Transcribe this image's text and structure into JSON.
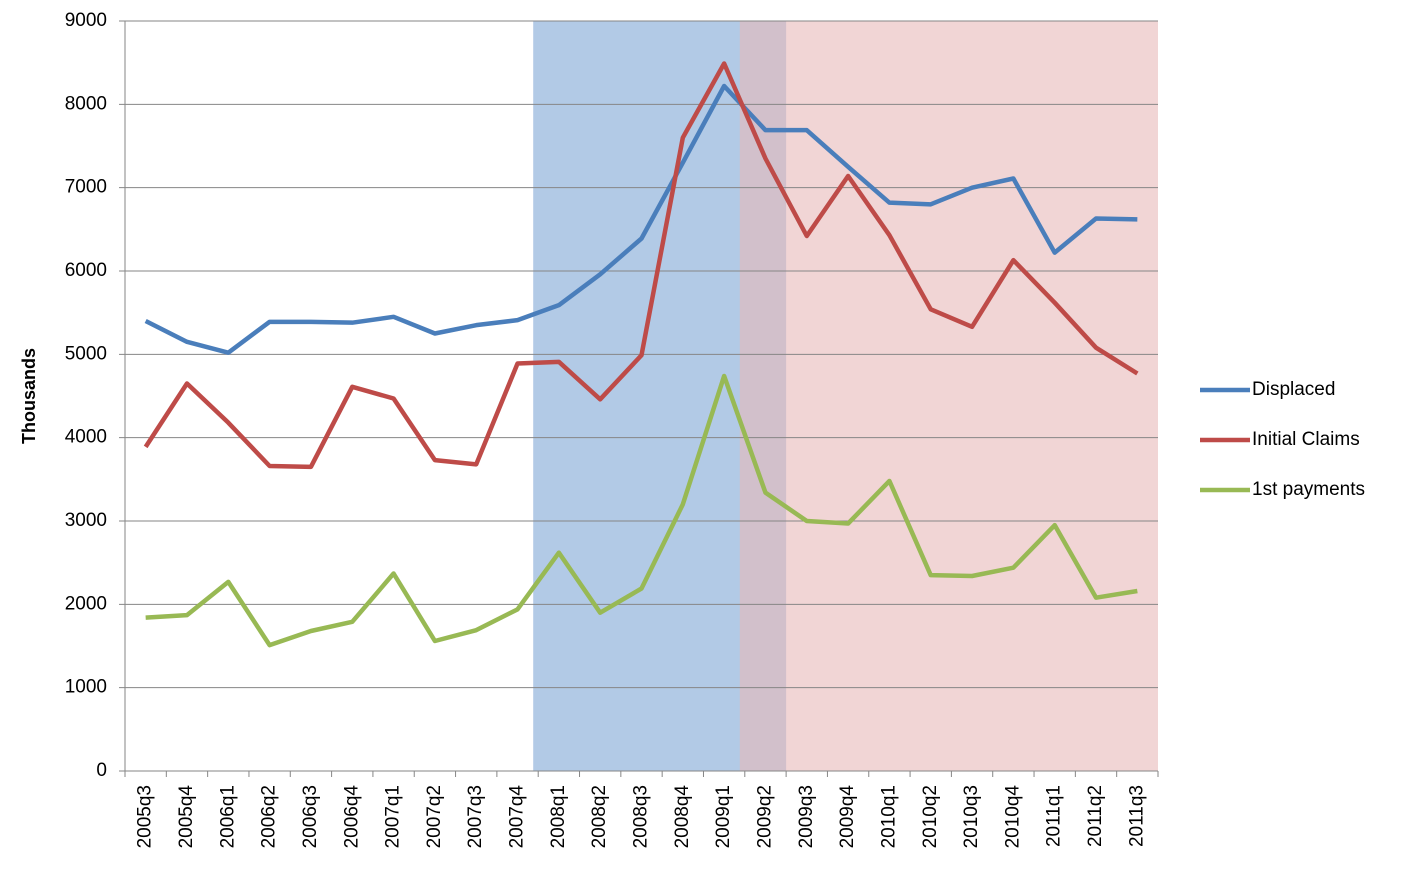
{
  "chart_data": {
    "type": "line",
    "y_label": "Thousands",
    "categories": [
      "2005q3",
      "2005q4",
      "2006q1",
      "2006q2",
      "2006q3",
      "2006q4",
      "2007q1",
      "2007q2",
      "2007q3",
      "2007q4",
      "2008q1",
      "2008q2",
      "2008q3",
      "2008q4",
      "2009q1",
      "2009q2",
      "2009q3",
      "2009q4",
      "2010q1",
      "2010q2",
      "2010q3",
      "2010q4",
      "2011q1",
      "2011q2",
      "2011q3"
    ],
    "series": [
      {
        "name": "Displaced",
        "color": "#4a7ebb",
        "values": [
          5400,
          5150,
          5020,
          5390,
          5390,
          5380,
          5450,
          5250,
          5350,
          5410,
          5590,
          5960,
          6390,
          7300,
          8220,
          7690,
          7690,
          7250,
          6820,
          6800,
          7000,
          7110,
          6220,
          6630,
          6620
        ]
      },
      {
        "name": "Initial Claims",
        "color": "#be4b48",
        "values": [
          3890,
          4650,
          4180,
          3660,
          3650,
          4610,
          4470,
          3730,
          3680,
          4890,
          4910,
          4460,
          4990,
          7600,
          8490,
          7350,
          6420,
          7140,
          6430,
          5540,
          5330,
          6130,
          5620,
          5080,
          4770
        ]
      },
      {
        "name": "1st payments",
        "color": "#98b954",
        "values": [
          1840,
          1870,
          2270,
          1510,
          1680,
          1790,
          2370,
          1560,
          1690,
          1940,
          2620,
          1900,
          2190,
          3200,
          4740,
          3340,
          3000,
          2970,
          3480,
          2350,
          2340,
          2440,
          2950,
          2080,
          2160
        ]
      }
    ],
    "highlight_bands": [
      {
        "start": "2008q1",
        "end": "2009q2",
        "color": "#7fa6d6"
      },
      {
        "start": "2009q2",
        "end": "2011q3",
        "color": "#e7b9b9"
      }
    ],
    "ylim": [
      0,
      9000
    ],
    "yticks": [
      0,
      1000,
      2000,
      3000,
      4000,
      5000,
      6000,
      7000,
      8000,
      9000
    ],
    "grid": true,
    "legend": "right"
  }
}
